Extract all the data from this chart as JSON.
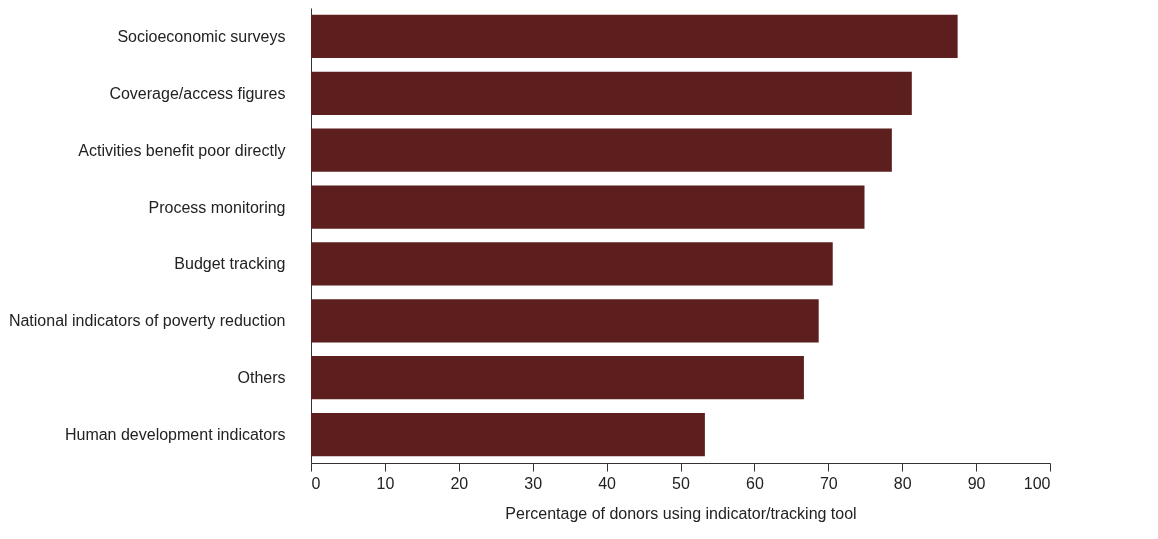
{
  "chart_data": {
    "type": "bar",
    "orientation": "horizontal",
    "xlabel": "Percentage of donors using indicator/tracking tool",
    "categories": [
      "Socioeconomic surveys",
      "Coverage/access figures",
      "Activities benefit poor directly",
      "Process monitoring",
      "Budget tracking",
      "National indicators of poverty reduction",
      "Others",
      "Human development indicators"
    ],
    "values": [
      87.5,
      81.3,
      78.6,
      74.9,
      70.6,
      68.7,
      66.7,
      53.3
    ],
    "color": "#5c1f1e",
    "xlim": [
      0,
      100
    ],
    "xticks": [
      0,
      10,
      20,
      30,
      40,
      50,
      60,
      70,
      80,
      90,
      100
    ],
    "grid": false
  }
}
